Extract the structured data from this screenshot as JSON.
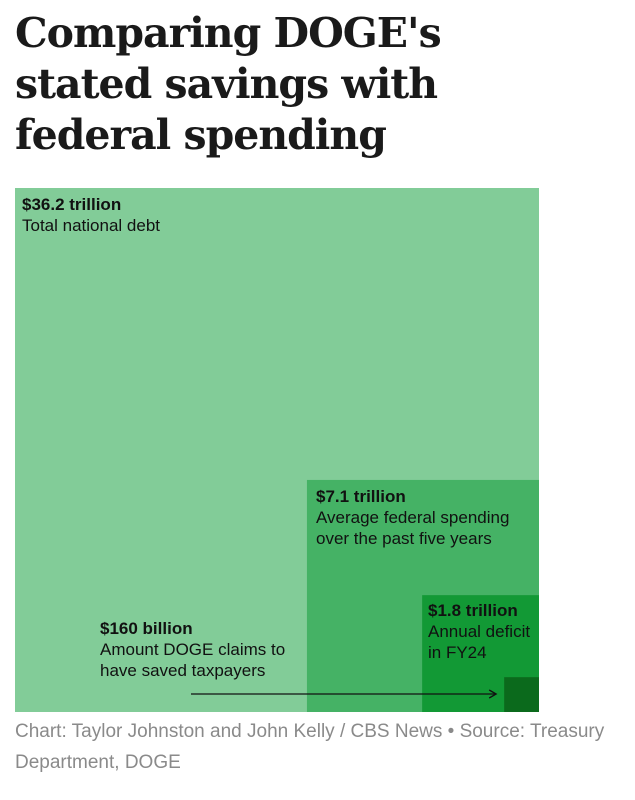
{
  "title": "Comparing DOGE's stated savings with federal spending",
  "source": "Chart: Taylor Johnston and John Kelly / CBS News • Source: Treasury Department, DOGE",
  "colors": {
    "debt": "#82cc98",
    "spending": "#45b265",
    "deficit": "#129935",
    "doge": "#0b6a1c",
    "arrow": "#111111"
  },
  "chart_data": {
    "type": "nested-area",
    "unit": "USD",
    "items": [
      {
        "key": "debt",
        "value": 36200000000000.0,
        "value_label": "$36.2 trillion",
        "description": "Total national debt"
      },
      {
        "key": "spending",
        "value": 7100000000000.0,
        "value_label": "$7.1 trillion",
        "description": "Average federal spending over the past five years"
      },
      {
        "key": "deficit",
        "value": 1800000000000.0,
        "value_label": "$1.8 trillion",
        "description": "Annual deficit in FY24"
      },
      {
        "key": "doge",
        "value": 160000000000.0,
        "value_label": "$160 billion",
        "description": "Amount DOGE claims to have saved taxpayers"
      }
    ]
  }
}
